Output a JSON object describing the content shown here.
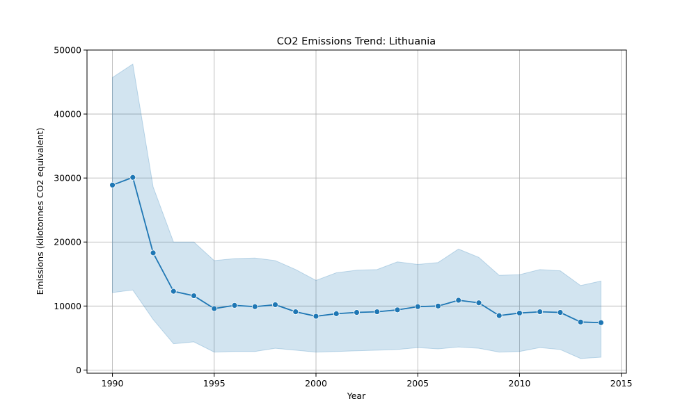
{
  "chart_data": {
    "type": "line",
    "title": "CO2 Emissions Trend: Lithuania",
    "xlabel": "Year",
    "ylabel": "Emissions (kilotonnes CO2 equivalent)",
    "xlim": [
      1988.75,
      2015.25
    ],
    "ylim": [
      -500,
      50000
    ],
    "xticks": [
      1990,
      1995,
      2000,
      2005,
      2010,
      2015
    ],
    "yticks": [
      0,
      10000,
      20000,
      30000,
      40000,
      50000
    ],
    "grid": true,
    "colors": {
      "line": "#1f77b4",
      "band": "#1f77b4"
    },
    "series": [
      {
        "x": [
          1990,
          1991,
          1992,
          1993,
          1994,
          1995,
          1996,
          1997,
          1998,
          1999,
          2000,
          2001,
          2002,
          2003,
          2004,
          2005,
          2006,
          2007,
          2008,
          2009,
          2010,
          2011,
          2012,
          2013,
          2014
        ],
        "values": [
          28900,
          30100,
          18300,
          12300,
          11600,
          9600,
          10100,
          9900,
          10200,
          9100,
          8400,
          8800,
          9000,
          9100,
          9400,
          9900,
          10000,
          10900,
          10500,
          8500,
          8900,
          9100,
          9000,
          7500,
          7400
        ],
        "band_upper": [
          45700,
          47800,
          28600,
          20000,
          20000,
          17100,
          17400,
          17500,
          17100,
          15700,
          14000,
          15200,
          15600,
          15700,
          16900,
          16500,
          16800,
          18900,
          17600,
          14800,
          14900,
          15700,
          15500,
          13200,
          13900
        ],
        "band_lower": [
          12100,
          12500,
          7900,
          4100,
          4400,
          2800,
          2900,
          2900,
          3400,
          3100,
          2800,
          2900,
          3000,
          3100,
          3200,
          3500,
          3300,
          3600,
          3400,
          2800,
          2900,
          3500,
          3200,
          1800,
          2000
        ]
      }
    ]
  }
}
